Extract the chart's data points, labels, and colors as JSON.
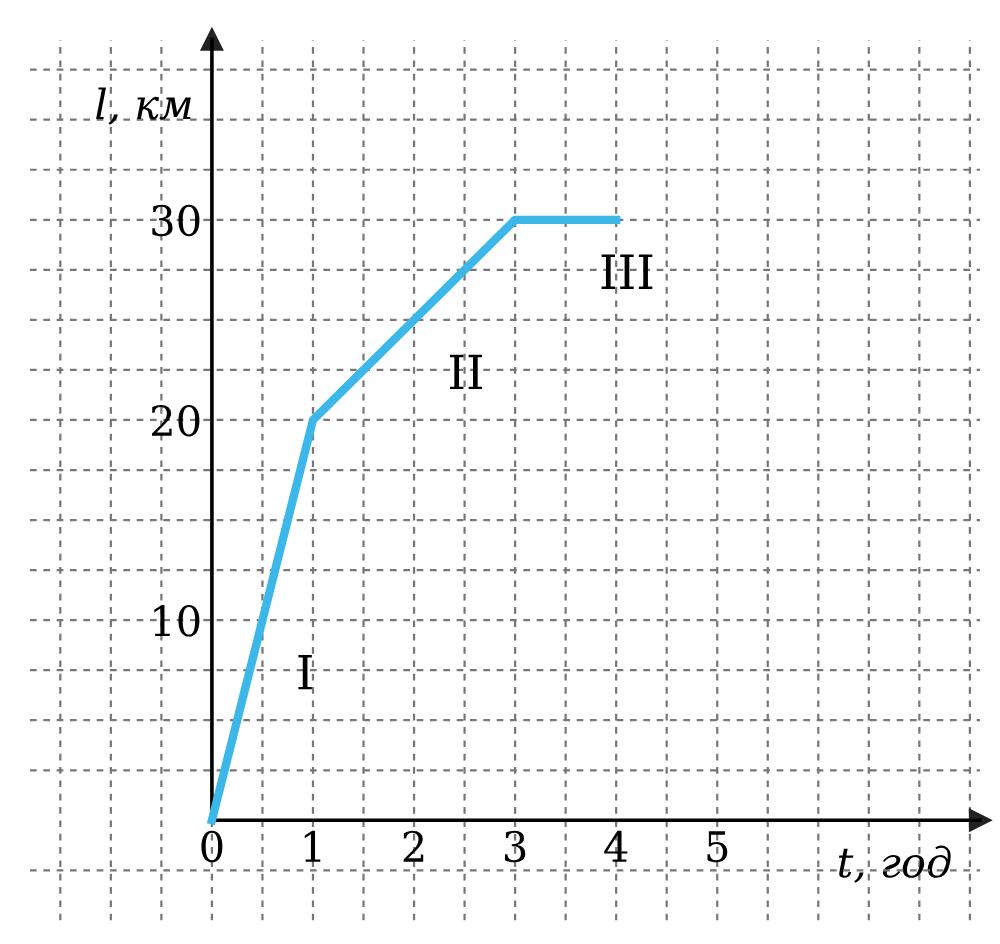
{
  "chart_data": {
    "type": "line",
    "xlabel": "t, год",
    "ylabel": "l, км",
    "x": [
      0,
      1,
      3,
      4
    ],
    "series": [
      {
        "color": "#3bb7ea",
        "values": [
          0,
          20,
          30,
          30
        ]
      }
    ],
    "xlim": [
      -1.8,
      7.6
    ],
    "ylim": [
      -5,
      39
    ],
    "xticks": [
      {
        "value": -1.5,
        "label": null
      },
      {
        "value": -1,
        "label": null
      },
      {
        "value": -0.5,
        "label": null
      },
      {
        "value": 0,
        "label": "0"
      },
      {
        "value": 0.5,
        "label": null
      },
      1,
      {
        "value": 1.5,
        "label": null
      },
      2,
      {
        "value": 2.5,
        "label": null
      },
      3,
      {
        "value": 3.5,
        "label": null
      },
      4,
      {
        "value": 4.5,
        "label": null
      },
      5,
      {
        "value": 5.5,
        "label": null
      },
      {
        "value": 6,
        "label": null
      },
      {
        "value": 6.5,
        "label": null
      },
      {
        "value": 7,
        "label": null
      },
      {
        "value": 7.5,
        "label": null
      }
    ],
    "yticks": [
      {
        "value": -2.5,
        "label": null
      },
      {
        "value": 2.5,
        "label": null
      },
      {
        "value": 5,
        "label": null
      },
      {
        "value": 7.5,
        "label": null
      },
      10,
      {
        "value": 12.5,
        "label": null
      },
      {
        "value": 15,
        "label": null
      },
      {
        "value": 17.5,
        "label": null
      },
      20,
      {
        "value": 22.5,
        "label": null
      },
      {
        "value": 25,
        "label": null
      },
      {
        "value": 27.5,
        "label": null
      },
      30,
      {
        "value": 32.5,
        "label": null
      },
      {
        "value": 35,
        "label": null
      },
      {
        "value": 37.5,
        "label": null
      }
    ],
    "grid": true,
    "marker": "none",
    "line_style": "solid",
    "annotations": [
      "I",
      "II",
      "III"
    ]
  }
}
